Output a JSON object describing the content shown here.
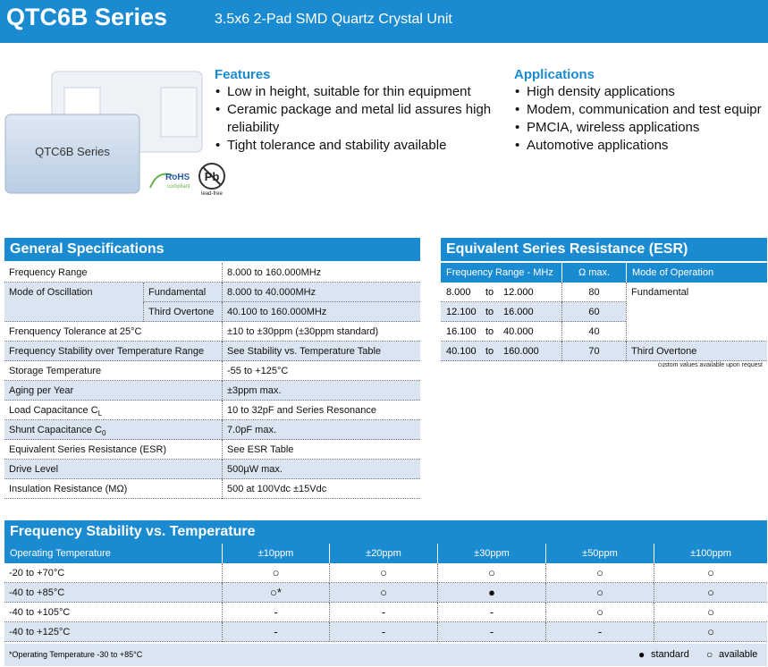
{
  "header": {
    "title": "QTC6B Series",
    "subtitle": "3.5x6 2-Pad SMD Quartz Crystal Unit"
  },
  "product": {
    "label": "QTC6B Series",
    "rohs": "RoHS",
    "rohs_note": "compliant",
    "pb": "Pb",
    "pb_note": "lead-free"
  },
  "features": {
    "title": "Features",
    "items": [
      "Low in height, suitable for thin equipment",
      "Ceramic package and metal lid assures high reliability",
      "Tight tolerance and stability available"
    ]
  },
  "applications": {
    "title": "Applications",
    "items": [
      "High density applications",
      "Modem, communication and test equipr",
      "PMCIA, wireless applications",
      "Automotive applications"
    ]
  },
  "general_specifications": {
    "title": "General Specifications",
    "rows": [
      {
        "label": "Frequency Range",
        "value": "8.000 to 160.000MHz"
      },
      {
        "label": "Mode of Oscillation",
        "sub_rows": [
          {
            "label": "Fundamental",
            "value": "8.000 to 40.000MHz"
          },
          {
            "label": "Third Overtone",
            "value": "40.100 to 160.000MHz"
          }
        ]
      },
      {
        "label": "Frenquency Tolerance at 25°C",
        "value": "±10 to ±30ppm (±30ppm standard)"
      },
      {
        "label": "Frequency Stability over Temperature Range",
        "value": "See Stability vs. Temperature Table"
      },
      {
        "label": "Storage Temperature",
        "value": "-55 to +125°C"
      },
      {
        "label": "Aging per Year",
        "value": "±3ppm max."
      },
      {
        "label": {
          "text": "Load Capacitance C",
          "sub": "L"
        },
        "value": "10 to 32pF and Series Resonance"
      },
      {
        "label": {
          "text": "Shunt Capacitance C",
          "sub": "0"
        },
        "value": "7.0pF max."
      },
      {
        "label": "Equivalent Series Resistance (ESR)",
        "value": "See ESR Table"
      },
      {
        "label": "Drive Level",
        "value": "500µW max."
      },
      {
        "label": "Insulation Resistance (MΩ)",
        "value": "500 at 100Vdc ±15Vdc"
      }
    ]
  },
  "esr": {
    "title": "Equivalent Series Resistance (ESR)",
    "columns": [
      "Frequency Range - MHz",
      "Ω max.",
      "Mode of Operation"
    ],
    "range_word": "to",
    "rows": [
      {
        "from": "8.000",
        "to": "12.000",
        "ohm_max": 80
      },
      {
        "from": "12.100",
        "to": "16.000",
        "ohm_max": 60
      },
      {
        "from": "16.100",
        "to": "40.000",
        "ohm_max": 40
      },
      {
        "from": "40.100",
        "to": "160.000",
        "ohm_max": 70
      }
    ],
    "modes": [
      {
        "label": "Fundamental",
        "rows": 3
      },
      {
        "label": "Third Overtone",
        "rows": 1
      }
    ],
    "note": "custom values available upon request"
  },
  "stability": {
    "title": "Frequency Stability vs. Temperature",
    "columns": [
      "Operating Temperature",
      "±10ppm",
      "±20ppm",
      "±30ppm",
      "±50ppm",
      "±100ppm"
    ],
    "rows": [
      {
        "temp": "-20 to +70°C",
        "cells": [
          "○",
          "○",
          "○",
          "○",
          "○"
        ]
      },
      {
        "temp": "-40 to +85°C",
        "cells": [
          "○*",
          "○",
          "●",
          "○",
          "○"
        ]
      },
      {
        "temp": "-40 to +105°C",
        "cells": [
          "-",
          "-",
          "-",
          "○",
          "○"
        ]
      },
      {
        "temp": "-40 to +125°C",
        "cells": [
          "-",
          "-",
          "-",
          "-",
          "○"
        ]
      }
    ],
    "footnote": "*Operating Temperature -30 to +85°C",
    "legend": [
      {
        "symbol": "●",
        "label": "standard"
      },
      {
        "symbol": "○",
        "label": "available"
      }
    ]
  }
}
